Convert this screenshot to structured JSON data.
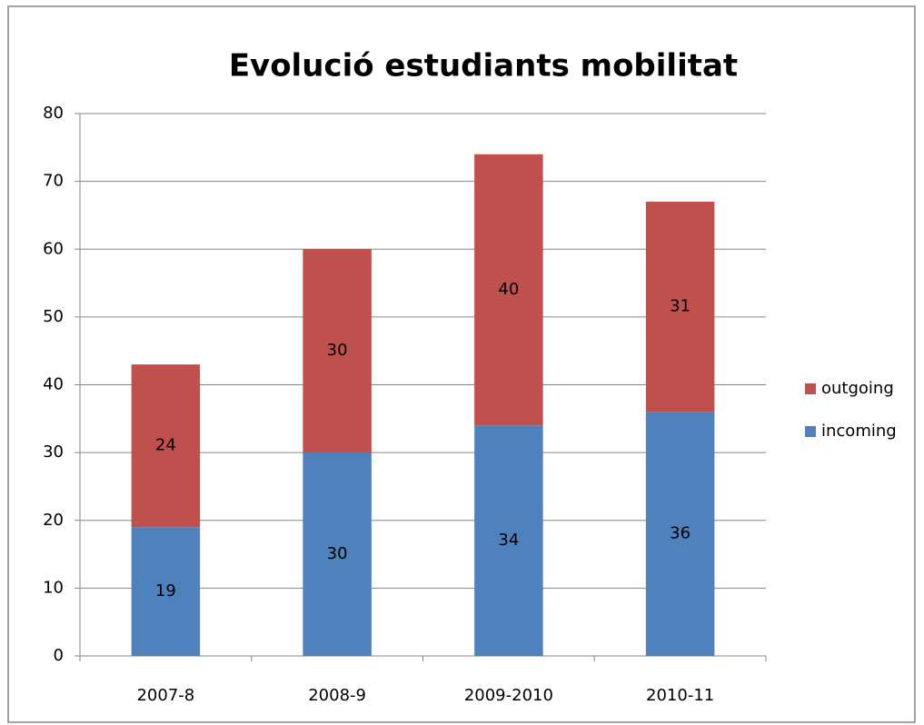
{
  "chart_data": {
    "type": "stacked_bar",
    "title": "Evolució estudiants mobilitat",
    "categories": [
      "2007-8",
      "2008-9",
      "2009-2010",
      "2010-11"
    ],
    "series": [
      {
        "name": "incoming",
        "color": "#4f81bd",
        "values": [
          19,
          30,
          34,
          36
        ]
      },
      {
        "name": "outgoing",
        "color": "#c0504d",
        "values": [
          24,
          30,
          40,
          31
        ]
      }
    ],
    "ylim": [
      0,
      80
    ],
    "yticks": [
      0,
      10,
      20,
      30,
      40,
      50,
      60,
      70,
      80
    ],
    "grid": true,
    "legend": "right"
  }
}
